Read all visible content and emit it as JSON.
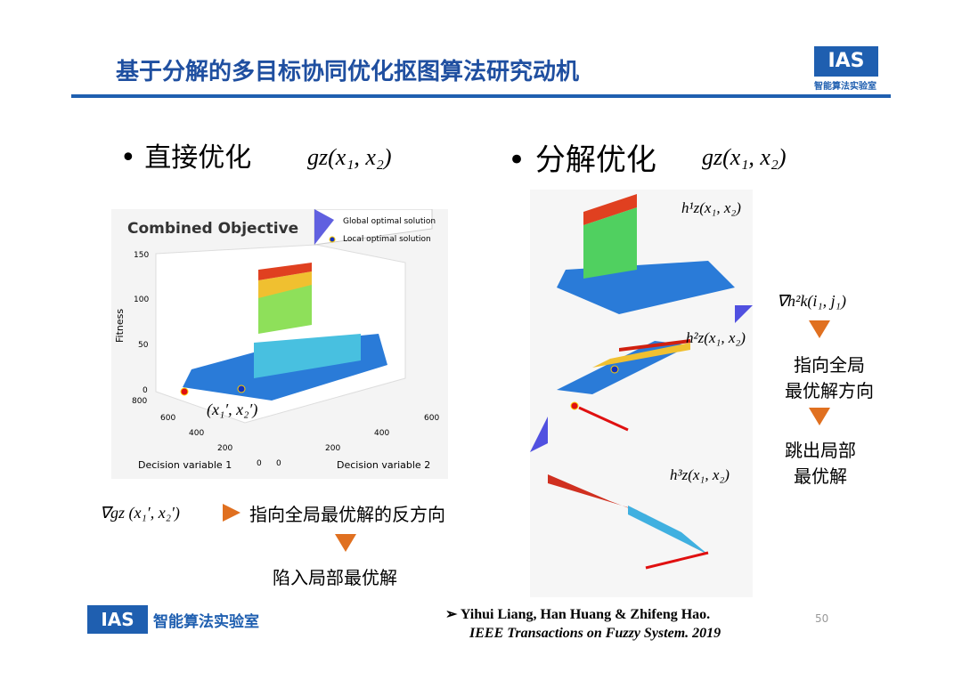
{
  "header": {
    "title": "基于分解的多目标协同优化抠图算法研究动机",
    "logo": "智能算法实验室"
  },
  "left": {
    "bullet": "直接优化",
    "formula": "gz(x₁, x₂)",
    "plot": {
      "title": "Combined Objective",
      "legend": [
        "Global optimal solution",
        "Local optimal solution"
      ],
      "ylabel": "Fitness",
      "yticks": [
        "150",
        "100",
        "50",
        "0"
      ],
      "xlabel1": "Decision variable 1",
      "xlabel2": "Decision variable 2",
      "x1ticks": [
        "800",
        "600",
        "400",
        "200",
        "0"
      ],
      "x2ticks": [
        "0",
        "200",
        "400",
        "600"
      ],
      "point": "(x₁′, x₂′)"
    },
    "gradient": "∇gz (x₁′, x₂′)",
    "direction": "指向全局最优解的反方向",
    "result": "陷入局部最优解"
  },
  "right": {
    "bullet": "分解优化",
    "formula": "gz(x₁, x₂)",
    "subplots": [
      "h¹z(x₁, x₂)",
      "h²z(x₁, x₂)",
      "h³z(x₁, x₂)"
    ],
    "gradient": "∇h²k(i₁, j₁)",
    "direction": [
      "指向全局",
      "最优解方向"
    ],
    "result": [
      "跳出局部",
      "最优解"
    ]
  },
  "footer": {
    "logo": "智能算法实验室",
    "authors": "Yihui Liang, Han Huang & Zhifeng Hao.",
    "journal": "IEEE Transactions on Fuzzy System. 2019",
    "page": "50"
  }
}
